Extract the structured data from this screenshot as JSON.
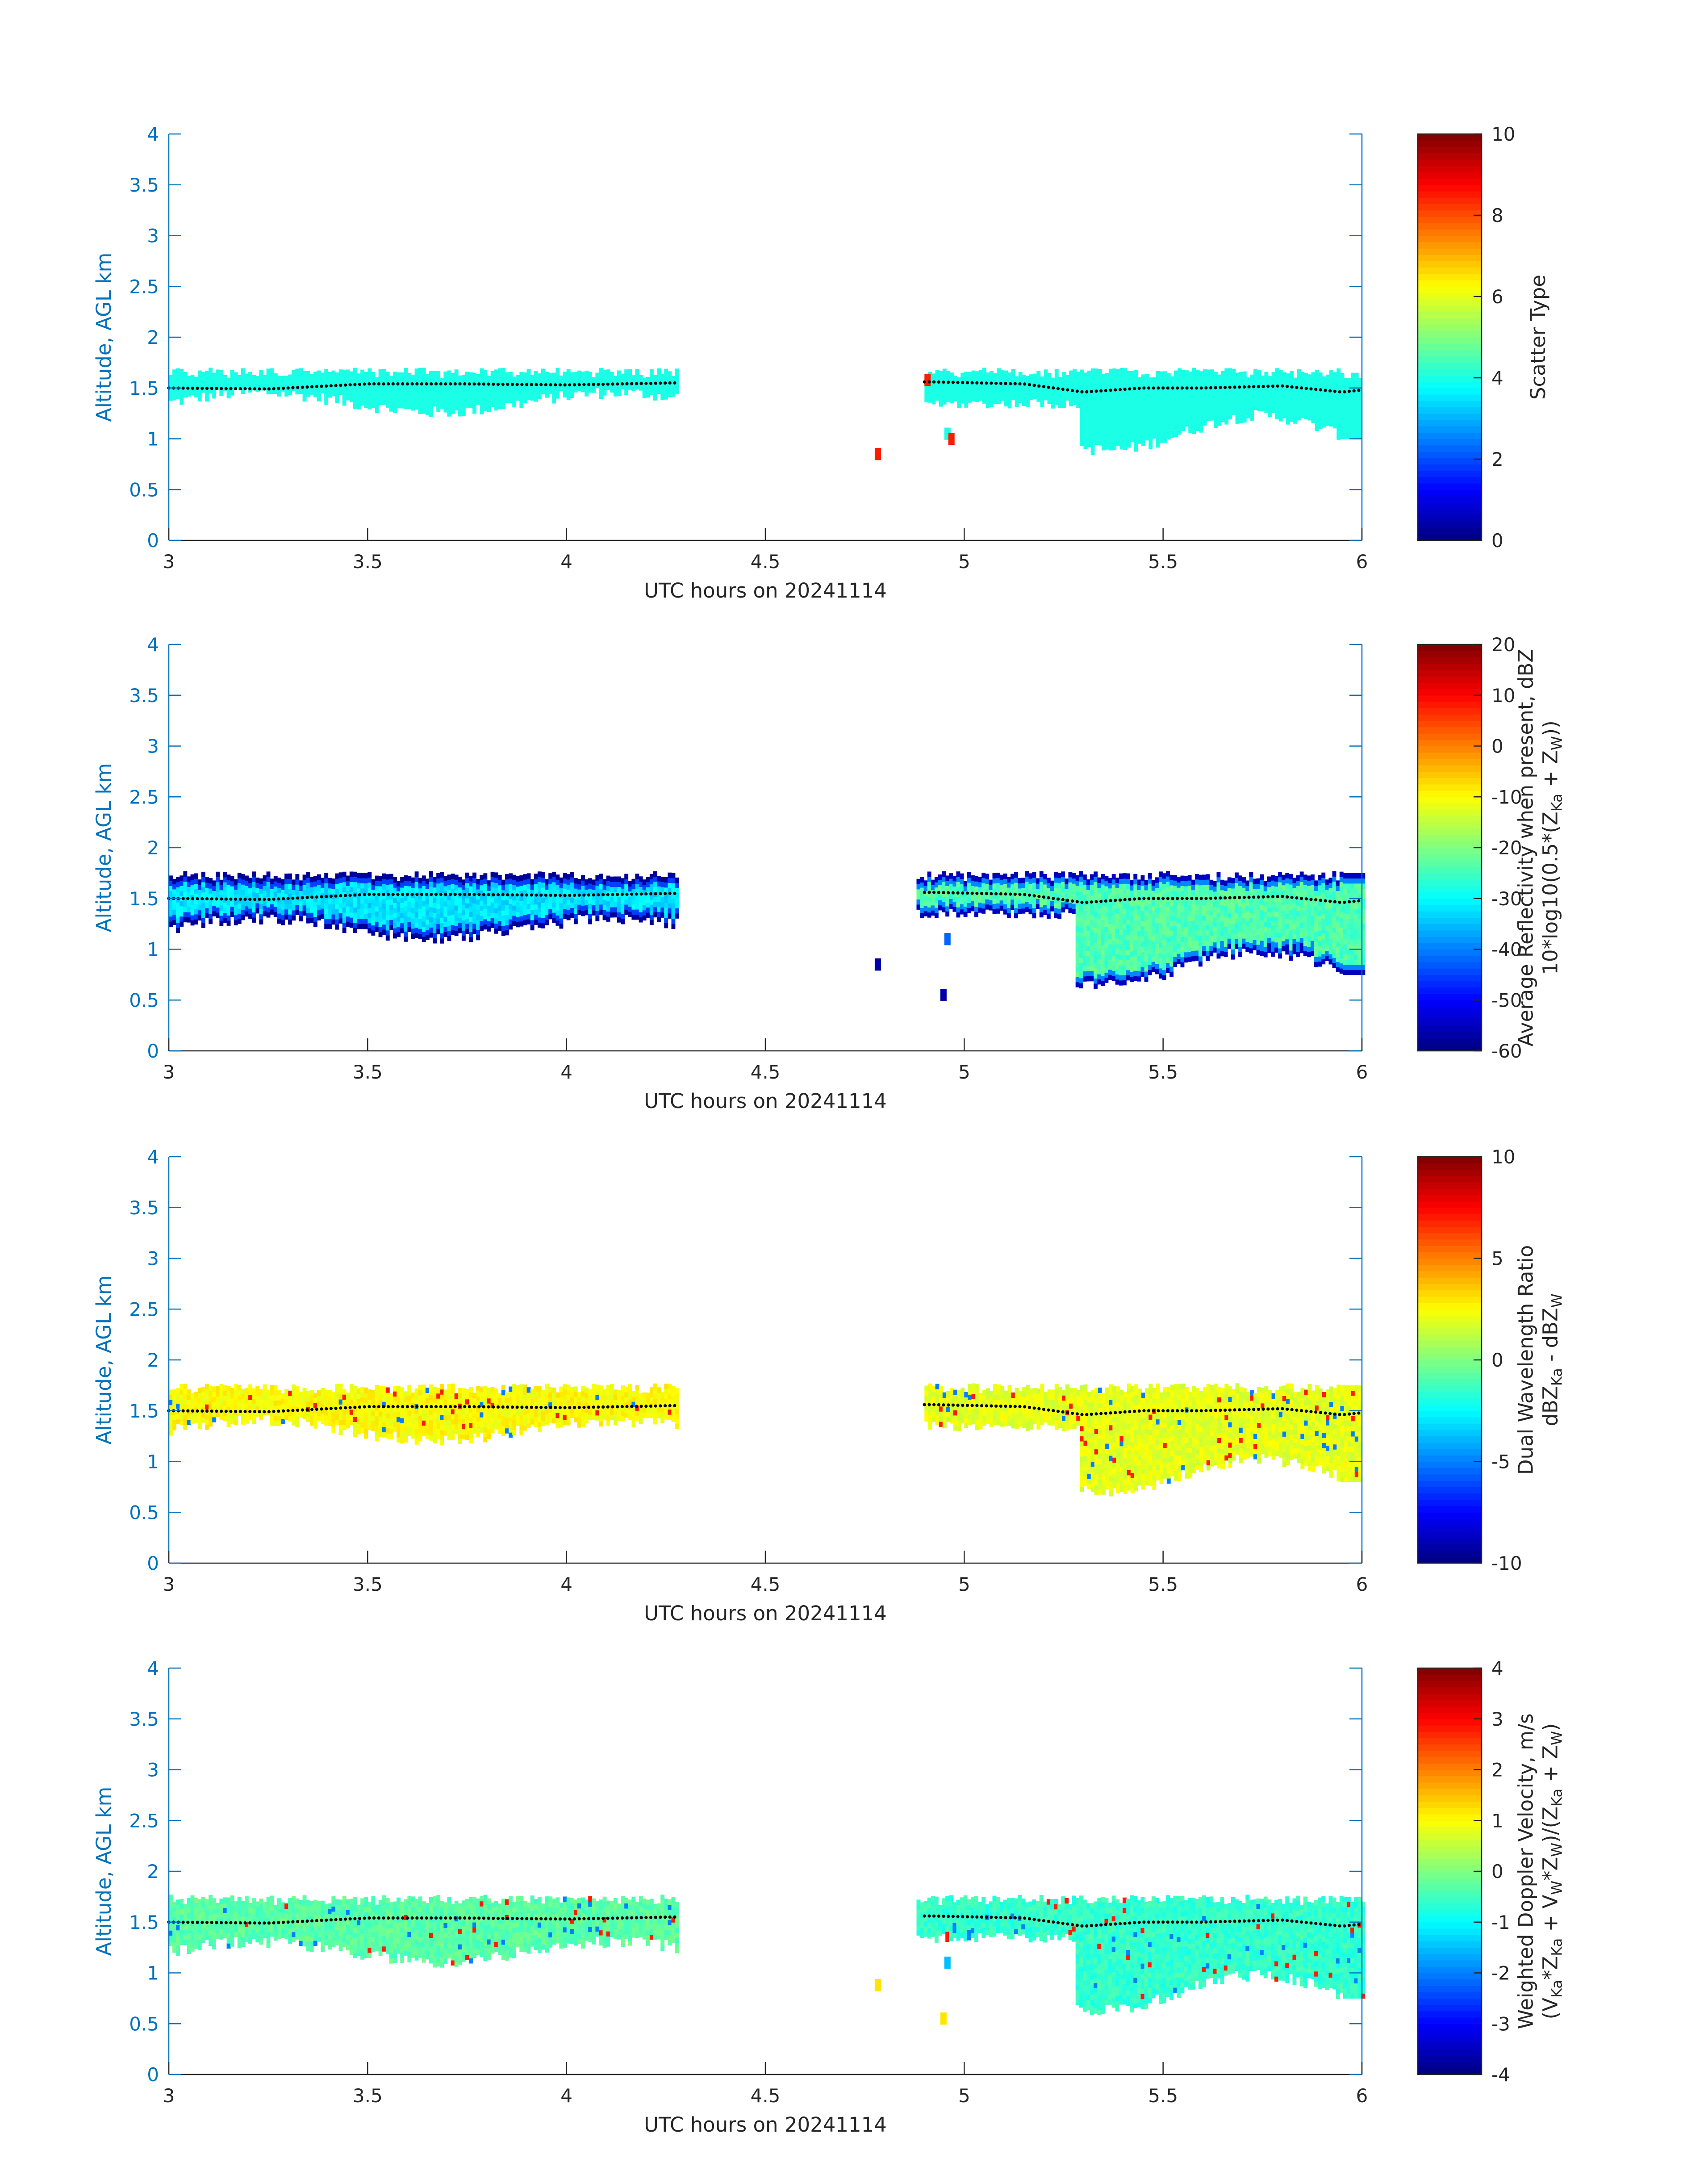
{
  "figure": {
    "colors": {
      "axis_blue": "#0072BD",
      "text": "#262626",
      "cloud_top_marker": "#000000",
      "colormap": "jet"
    },
    "panels": [
      {
        "id": "scatter-type",
        "ylabel": "Altitude, AGL km",
        "xlabel": "UTC hours on 20241114",
        "xticks": [
          "3",
          "3.5",
          "4",
          "4.5",
          "5",
          "5.5",
          "6"
        ],
        "yticks": [
          "0",
          "0.5",
          "1",
          "1.5",
          "2",
          "2.5",
          "3",
          "3.5",
          "4"
        ],
        "colorbar": {
          "label_lines": [
            [
              "Scatter Type"
            ]
          ],
          "ticks": [
            "0",
            "2",
            "4",
            "6",
            "8",
            "10"
          ]
        }
      },
      {
        "id": "reflectivity",
        "ylabel": "Altitude, AGL km",
        "xlabel": "UTC hours on 20241114",
        "xticks": [
          "3",
          "3.5",
          "4",
          "4.5",
          "5",
          "5.5",
          "6"
        ],
        "yticks": [
          "0",
          "0.5",
          "1",
          "1.5",
          "2",
          "2.5",
          "3",
          "3.5",
          "4"
        ],
        "colorbar": {
          "label_lines": [
            [
              "Average Reflectivity when present, dBZ"
            ],
            [
              "10*log10(0.5*(Z",
              {
                "sub": "Ka"
              },
              " + Z",
              {
                "sub": "W"
              },
              "))"
            ]
          ],
          "ticks": [
            "-60",
            "-50",
            "-40",
            "-30",
            "-20",
            "-10",
            "0",
            "10",
            "20"
          ]
        }
      },
      {
        "id": "dual-wavelength-ratio",
        "ylabel": "Altitude, AGL km",
        "xlabel": "UTC hours on 20241114",
        "xticks": [
          "3",
          "3.5",
          "4",
          "4.5",
          "5",
          "5.5",
          "6"
        ],
        "yticks": [
          "0",
          "0.5",
          "1",
          "1.5",
          "2",
          "2.5",
          "3",
          "3.5",
          "4"
        ],
        "colorbar": {
          "label_lines": [
            [
              "Dual Wavelength Ratio"
            ],
            [
              "dBZ",
              {
                "sub": "Ka"
              },
              " - dBZ",
              {
                "sub": "W"
              }
            ]
          ],
          "ticks": [
            "-10",
            "-5",
            "0",
            "5",
            "10"
          ]
        }
      },
      {
        "id": "doppler-velocity",
        "ylabel": "Altitude, AGL km",
        "xlabel": "UTC hours on 20241114",
        "xticks": [
          "3",
          "3.5",
          "4",
          "4.5",
          "5",
          "5.5",
          "6"
        ],
        "yticks": [
          "0",
          "0.5",
          "1",
          "1.5",
          "2",
          "2.5",
          "3",
          "3.5",
          "4"
        ],
        "colorbar": {
          "label_lines": [
            [
              "Weighted Doppler Velocity, m/s"
            ],
            [
              "(V",
              {
                "sub": "Ka"
              },
              "*Z",
              {
                "sub": "Ka"
              },
              " + V",
              {
                "sub": "W"
              },
              "*Z",
              {
                "sub": "W"
              },
              ")/(Z",
              {
                "sub": "Ka"
              },
              " + Z",
              {
                "sub": "W"
              },
              ")"
            ]
          ],
          "ticks": [
            "-4",
            "-3",
            "-2",
            "-1",
            "0",
            "1",
            "2",
            "3",
            "4"
          ]
        }
      }
    ]
  },
  "chart_data": [
    {
      "type": "heatmap",
      "title": "",
      "xlabel": "UTC hours on 20241114",
      "ylabel": "Altitude, AGL km",
      "xlim": [
        3,
        6
      ],
      "ylim": [
        0,
        4
      ],
      "colorbar_label": "Scatter Type",
      "clim": [
        0,
        10
      ],
      "colormap": "jet",
      "cloud_layers": [
        {
          "x_start": 3.0,
          "x_end": 4.28,
          "top_km": 1.65,
          "base_km": 1.3,
          "value": 4
        },
        {
          "x_start": 4.9,
          "x_end": 6.0,
          "top_km": 1.65,
          "base_km": 1.0,
          "value": 4
        }
      ],
      "isolated_echoes": [
        {
          "x": 4.775,
          "y_km": 0.85,
          "value": 8.5
        },
        {
          "x": 4.9,
          "y_km": 1.58,
          "value": 8.5
        },
        {
          "x": 4.95,
          "y_km": 1.05,
          "value": 4
        },
        {
          "x": 4.96,
          "y_km": 1.0,
          "value": 8.5
        }
      ],
      "cloud_top_height": {
        "x": [
          3.0,
          3.25,
          3.5,
          3.75,
          4.0,
          4.27,
          4.92,
          5.15,
          5.3,
          5.45,
          5.6,
          5.8,
          5.95,
          6.0
        ],
        "y_km": [
          1.5,
          1.49,
          1.54,
          1.54,
          1.53,
          1.55,
          1.56,
          1.54,
          1.46,
          1.5,
          1.5,
          1.52,
          1.46,
          1.48
        ]
      }
    },
    {
      "type": "heatmap",
      "title": "",
      "xlabel": "UTC hours on 20241114",
      "ylabel": "Altitude, AGL km",
      "xlim": [
        3,
        6
      ],
      "ylim": [
        0,
        4
      ],
      "colorbar_label": "Average Reflectivity when present, dBZ 10*log10(0.5*(Z_Ka + Z_W))",
      "clim": [
        -60,
        20
      ],
      "colormap": "jet",
      "cloud_layers": [
        {
          "x_start": 3.0,
          "x_end": 4.28,
          "top_km": 1.72,
          "base_km": 1.15,
          "value_core": -32,
          "value_edge": -58
        },
        {
          "x_start": 4.88,
          "x_end": 6.0,
          "top_km": 1.72,
          "base_km": 0.75,
          "value_core": -24,
          "value_edge": -55
        }
      ],
      "isolated_echoes": [
        {
          "x": 4.775,
          "y_km": 0.85,
          "value": -57
        },
        {
          "x": 4.94,
          "y_km": 0.55,
          "value": -57
        },
        {
          "x": 4.95,
          "y_km": 1.1,
          "value": -42
        }
      ]
    },
    {
      "type": "heatmap",
      "title": "",
      "xlabel": "UTC hours on 20241114",
      "ylabel": "Altitude, AGL km",
      "xlim": [
        3,
        6
      ],
      "ylim": [
        0,
        4
      ],
      "colorbar_label": "Dual Wavelength Ratio dBZ_Ka - dBZ_W",
      "clim": [
        -10,
        10
      ],
      "colormap": "jet",
      "cloud_layers": [
        {
          "x_start": 3.0,
          "x_end": 4.28,
          "top_km": 1.72,
          "base_km": 1.25,
          "value_core": 2.5
        },
        {
          "x_start": 4.9,
          "x_end": 6.0,
          "top_km": 1.72,
          "base_km": 0.8,
          "value_core": 2.0
        }
      ]
    },
    {
      "type": "heatmap",
      "title": "",
      "xlabel": "UTC hours on 20241114",
      "ylabel": "Altitude, AGL km",
      "xlim": [
        3,
        6
      ],
      "ylim": [
        0,
        4
      ],
      "colorbar_label": "Weighted Doppler Velocity, m/s (V_Ka*Z_Ka + V_W*Z_W)/(Z_Ka + Z_W)",
      "clim": [
        -4,
        4
      ],
      "colormap": "jet",
      "cloud_layers": [
        {
          "x_start": 3.0,
          "x_end": 4.28,
          "top_km": 1.72,
          "base_km": 1.15,
          "value_core": -0.3
        },
        {
          "x_start": 4.88,
          "x_end": 6.0,
          "top_km": 1.72,
          "base_km": 0.75,
          "value_core": -0.6
        }
      ],
      "isolated_echoes": [
        {
          "x": 4.775,
          "y_km": 0.88,
          "value": 1.2
        },
        {
          "x": 4.94,
          "y_km": 0.55,
          "value": 1.2
        },
        {
          "x": 4.95,
          "y_km": 1.1,
          "value": -1.5
        }
      ]
    }
  ]
}
